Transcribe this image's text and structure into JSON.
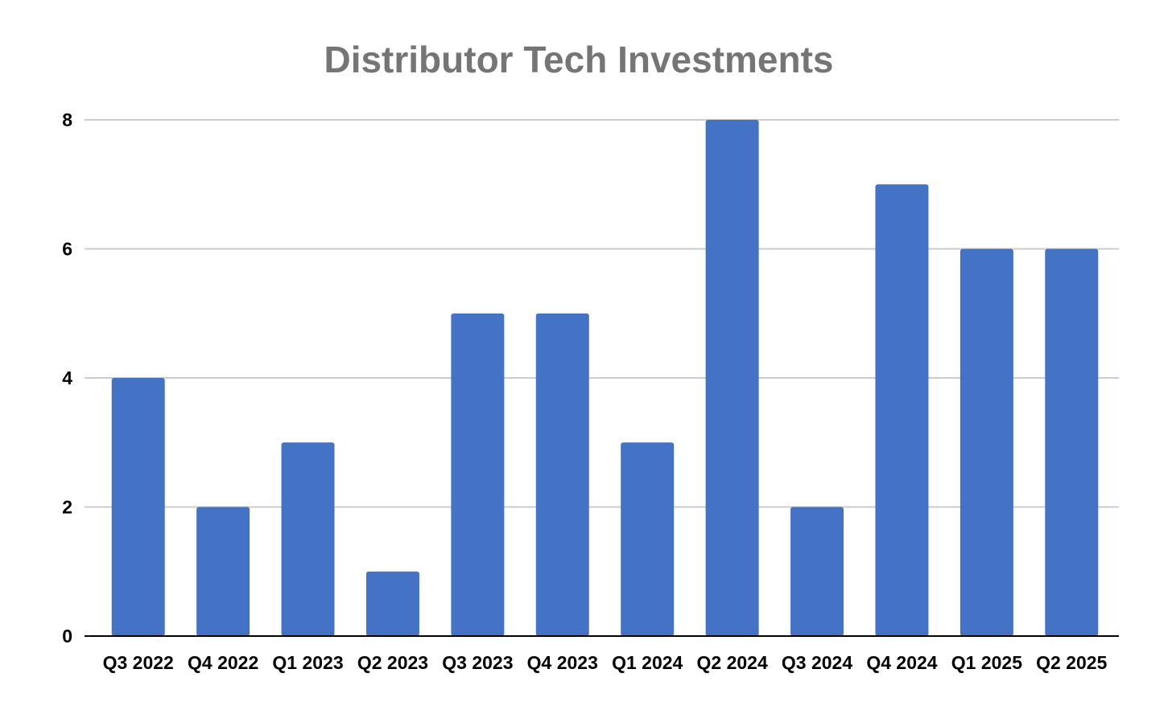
{
  "chart_data": {
    "type": "bar",
    "title": "Distributor Tech Investments",
    "xlabel": "",
    "ylabel": "",
    "categories": [
      "Q3 2022",
      "Q4 2022",
      "Q1 2023",
      "Q2 2023",
      "Q3 2023",
      "Q4 2023",
      "Q1 2024",
      "Q2 2024",
      "Q3 2024",
      "Q4 2024",
      "Q1 2025",
      "Q2 2025"
    ],
    "values": [
      4,
      2,
      3,
      1,
      5,
      5,
      3,
      8,
      2,
      7,
      6,
      6
    ],
    "ylim": [
      0,
      8
    ],
    "yticks": [
      0,
      2,
      4,
      6,
      8
    ],
    "grid": true,
    "legend": "none",
    "bar_color": "#4472c4"
  }
}
